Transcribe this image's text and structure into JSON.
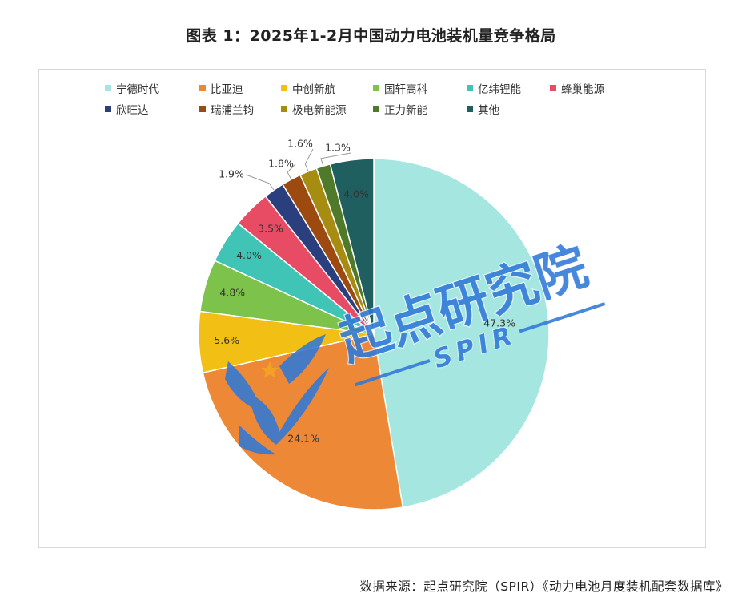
{
  "title": "图表 1：2025年1-2月中国动力电池装机量竞争格局",
  "source": "数据来源：起点研究院（SPIR）《动力电池月度装机配套数据库》",
  "watermark": {
    "name": "起点研究院",
    "sub": "SPIR"
  },
  "chart_data": {
    "type": "pie",
    "title": "图表 1：2025年1-2月中国动力电池装机量竞争格局",
    "unit": "%",
    "legend_position": "top",
    "categories": [
      "宁德时代",
      "比亚迪",
      "中创新航",
      "国轩高科",
      "亿纬锂能",
      "蜂巢能源",
      "欣旺达",
      "瑞浦兰钧",
      "极电新能源",
      "正力新能",
      "其他"
    ],
    "values": [
      47.3,
      24.1,
      5.6,
      4.8,
      4.0,
      3.5,
      1.9,
      1.8,
      1.6,
      1.3,
      4.0
    ],
    "labels": [
      "47.3%",
      "24.1%",
      "5.6%",
      "4.8%",
      "4.0%",
      "3.5%",
      "1.9%",
      "1.8%",
      "1.6%",
      "1.3%",
      "4.0%"
    ],
    "colors": [
      "#a6e6e1",
      "#ed8936",
      "#f2c014",
      "#7dc24b",
      "#3fc4b5",
      "#e84c65",
      "#2b3f7e",
      "#9c4a10",
      "#a68d12",
      "#4f7a2a",
      "#1f5f5f"
    ]
  }
}
